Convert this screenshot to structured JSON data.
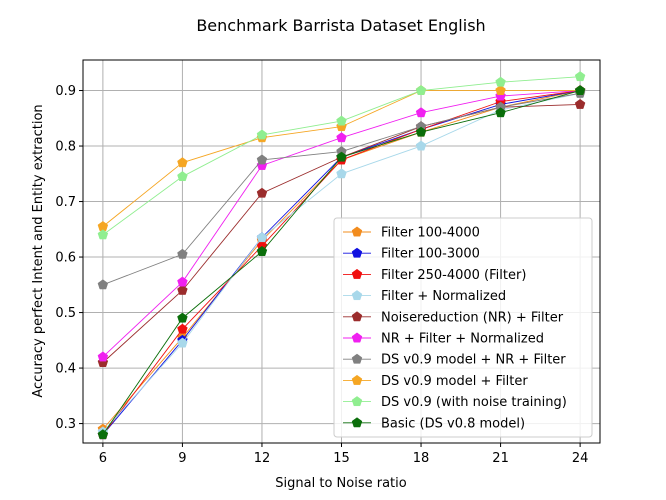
{
  "chart_data": {
    "type": "line",
    "title": "Benchmark Barrista Dataset English",
    "xlabel": "Signal to Noise ratio",
    "ylabel": "Accuracy perfect Intent and Entity extraction",
    "x": [
      6,
      9,
      12,
      15,
      18,
      21,
      24
    ],
    "x_tick_labels": [
      "6",
      "9",
      "12",
      "15",
      "18",
      "21",
      "24"
    ],
    "y_ticks": [
      0.3,
      0.4,
      0.5,
      0.6,
      0.7,
      0.8,
      0.9
    ],
    "y_tick_labels": [
      "0.3",
      "0.4",
      "0.5",
      "0.6",
      "0.7",
      "0.8",
      "0.9"
    ],
    "xlim": [
      5.25,
      24.75
    ],
    "ylim": [
      0.265,
      0.955
    ],
    "grid": true,
    "legend_position": "lower-right",
    "series": [
      {
        "name": "Filter 100-4000",
        "color": "#f28c1e",
        "values": [
          0.29,
          0.455,
          0.63,
          0.775,
          0.825,
          0.87,
          0.9
        ]
      },
      {
        "name": "Filter 100-3000",
        "color": "#1010e0",
        "values": [
          0.28,
          0.45,
          0.635,
          0.78,
          0.83,
          0.875,
          0.9
        ]
      },
      {
        "name": "Filter 250-4000 (Filter)",
        "color": "#f01010",
        "values": [
          0.28,
          0.47,
          0.62,
          0.775,
          0.83,
          0.88,
          0.9
        ]
      },
      {
        "name": "Filter + Normalized",
        "color": "#a8d8ea",
        "values": [
          0.285,
          0.445,
          0.635,
          0.75,
          0.8,
          0.865,
          0.895
        ]
      },
      {
        "name": "Noisereduction (NR) + Filter",
        "color": "#9b2c2c",
        "values": [
          0.41,
          0.54,
          0.715,
          0.78,
          0.835,
          0.87,
          0.875
        ]
      },
      {
        "name": "NR + Filter + Normalized",
        "color": "#f020f0",
        "values": [
          0.42,
          0.555,
          0.765,
          0.815,
          0.86,
          0.89,
          0.9
        ]
      },
      {
        "name": "DS v0.9 model + NR + Filter",
        "color": "#808080",
        "values": [
          0.55,
          0.605,
          0.775,
          0.79,
          0.835,
          0.87,
          0.895
        ]
      },
      {
        "name": "DS v0.9 model + Filter",
        "color": "#f5a623",
        "values": [
          0.655,
          0.77,
          0.815,
          0.835,
          0.9,
          0.9,
          0.9
        ]
      },
      {
        "name": "DS v0.9 (with noise training)",
        "color": "#90ee90",
        "values": [
          0.64,
          0.745,
          0.82,
          0.845,
          0.9,
          0.915,
          0.925
        ]
      },
      {
        "name": "Basic (DS v0.8 model)",
        "color": "#0a6e0a",
        "values": [
          0.28,
          0.49,
          0.61,
          0.78,
          0.825,
          0.86,
          0.9
        ]
      }
    ]
  }
}
